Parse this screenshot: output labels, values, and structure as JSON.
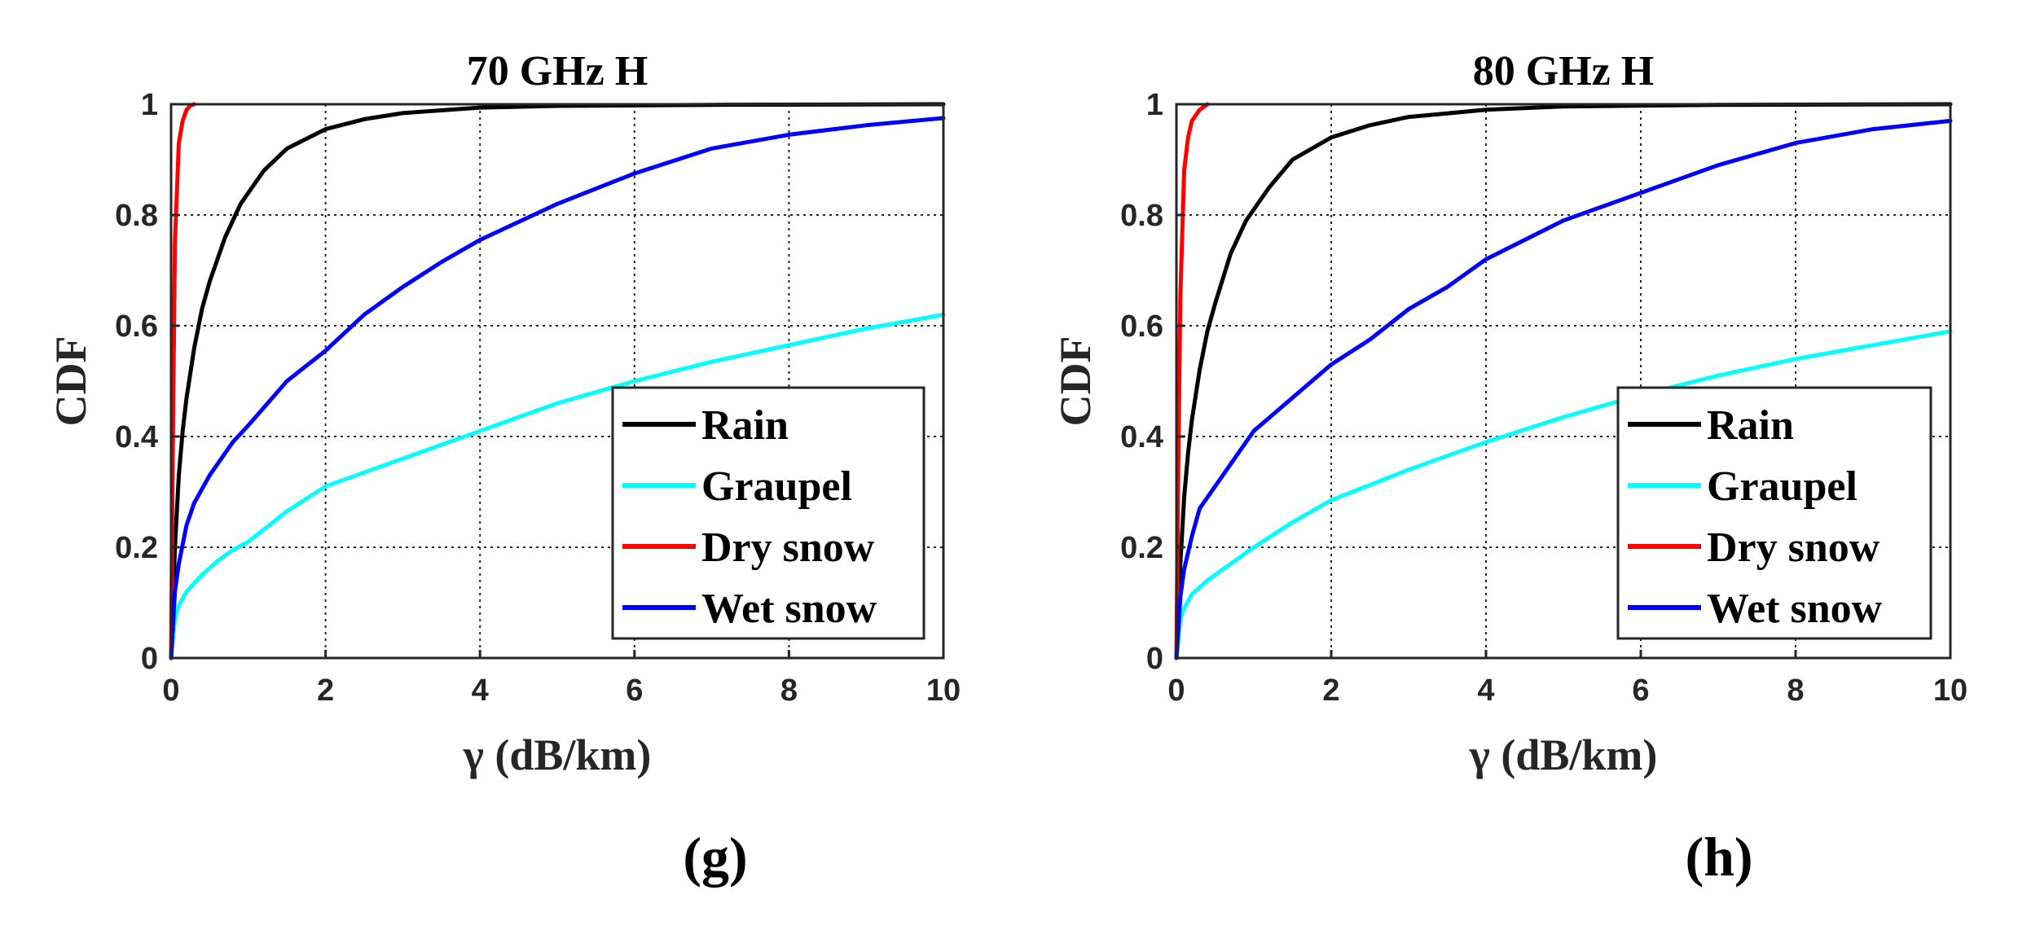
{
  "chart_data": [
    {
      "type": "line",
      "title": "70 GHz H",
      "panel_label": "(g)",
      "xlabel": "γ (dB/km)",
      "ylabel": "CDF",
      "xlim": [
        0,
        10
      ],
      "ylim": [
        0,
        1
      ],
      "xticks": [
        "0",
        "2",
        "4",
        "6",
        "8",
        "10"
      ],
      "yticks": [
        "0",
        "0.2",
        "0.4",
        "0.6",
        "0.8",
        "1"
      ],
      "grid": true,
      "legend_position": "bottom-right",
      "series": [
        {
          "name": "Rain",
          "color": "#000000",
          "x": [
            0,
            0.05,
            0.1,
            0.15,
            0.2,
            0.3,
            0.4,
            0.5,
            0.7,
            0.9,
            1.2,
            1.5,
            2,
            2.5,
            3,
            4,
            5,
            7,
            10
          ],
          "y": [
            0,
            0.2,
            0.33,
            0.41,
            0.47,
            0.56,
            0.63,
            0.68,
            0.76,
            0.82,
            0.88,
            0.92,
            0.955,
            0.973,
            0.984,
            0.994,
            0.997,
            0.999,
            1.0
          ]
        },
        {
          "name": "Graupel",
          "color": "#00ffff",
          "x": [
            0,
            0.05,
            0.1,
            0.2,
            0.4,
            0.6,
            0.8,
            1,
            1.5,
            2,
            3,
            4,
            5,
            6,
            7,
            8,
            9,
            10
          ],
          "y": [
            0,
            0.07,
            0.095,
            0.12,
            0.15,
            0.175,
            0.195,
            0.21,
            0.265,
            0.31,
            0.36,
            0.41,
            0.46,
            0.5,
            0.535,
            0.565,
            0.595,
            0.62
          ]
        },
        {
          "name": "Dry snow",
          "color": "#ff0000",
          "x": [
            0,
            0.02,
            0.05,
            0.1,
            0.15,
            0.2,
            0.25,
            0.3
          ],
          "y": [
            0,
            0.35,
            0.75,
            0.93,
            0.97,
            0.99,
            0.998,
            1.0
          ]
        },
        {
          "name": "Wet snow",
          "color": "#0000ff",
          "x": [
            0,
            0.05,
            0.1,
            0.2,
            0.3,
            0.5,
            0.8,
            1,
            1.5,
            2,
            2.5,
            3,
            3.5,
            4,
            5,
            6,
            7,
            8,
            9,
            10
          ],
          "y": [
            0,
            0.12,
            0.17,
            0.24,
            0.28,
            0.33,
            0.39,
            0.42,
            0.5,
            0.555,
            0.62,
            0.67,
            0.715,
            0.755,
            0.82,
            0.875,
            0.92,
            0.945,
            0.962,
            0.975
          ]
        }
      ]
    },
    {
      "type": "line",
      "title": "80 GHz H",
      "panel_label": "(h)",
      "xlabel": "γ (dB/km)",
      "ylabel": "CDF",
      "xlim": [
        0,
        10
      ],
      "ylim": [
        0,
        1
      ],
      "xticks": [
        "0",
        "2",
        "4",
        "6",
        "8",
        "10"
      ],
      "yticks": [
        "0",
        "0.2",
        "0.4",
        "0.6",
        "0.8",
        "1"
      ],
      "grid": true,
      "legend_position": "bottom-right",
      "series": [
        {
          "name": "Rain",
          "color": "#000000",
          "x": [
            0,
            0.05,
            0.1,
            0.15,
            0.2,
            0.3,
            0.4,
            0.5,
            0.7,
            0.9,
            1.2,
            1.5,
            2,
            2.5,
            3,
            4,
            5,
            7,
            10
          ],
          "y": [
            0,
            0.17,
            0.29,
            0.37,
            0.43,
            0.52,
            0.59,
            0.64,
            0.73,
            0.79,
            0.85,
            0.9,
            0.94,
            0.962,
            0.977,
            0.99,
            0.996,
            0.999,
            1.0
          ]
        },
        {
          "name": "Graupel",
          "color": "#00ffff",
          "x": [
            0,
            0.05,
            0.1,
            0.2,
            0.4,
            0.6,
            0.8,
            1,
            1.5,
            2,
            3,
            4,
            5,
            6,
            7,
            8,
            9,
            10
          ],
          "y": [
            0,
            0.07,
            0.09,
            0.115,
            0.14,
            0.16,
            0.18,
            0.2,
            0.245,
            0.285,
            0.34,
            0.39,
            0.435,
            0.475,
            0.51,
            0.54,
            0.565,
            0.59
          ]
        },
        {
          "name": "Dry snow",
          "color": "#ff0000",
          "x": [
            0,
            0.02,
            0.05,
            0.1,
            0.15,
            0.2,
            0.3,
            0.4
          ],
          "y": [
            0,
            0.3,
            0.65,
            0.88,
            0.94,
            0.97,
            0.99,
            1.0
          ]
        },
        {
          "name": "Wet snow",
          "color": "#0000ff",
          "x": [
            0,
            0.05,
            0.1,
            0.2,
            0.3,
            0.5,
            0.8,
            1,
            1.5,
            2,
            2.5,
            3,
            3.5,
            4,
            5,
            6,
            7,
            8,
            9,
            10
          ],
          "y": [
            0,
            0.11,
            0.16,
            0.22,
            0.27,
            0.31,
            0.37,
            0.41,
            0.47,
            0.53,
            0.575,
            0.63,
            0.67,
            0.72,
            0.79,
            0.84,
            0.89,
            0.93,
            0.955,
            0.97
          ]
        }
      ]
    }
  ]
}
